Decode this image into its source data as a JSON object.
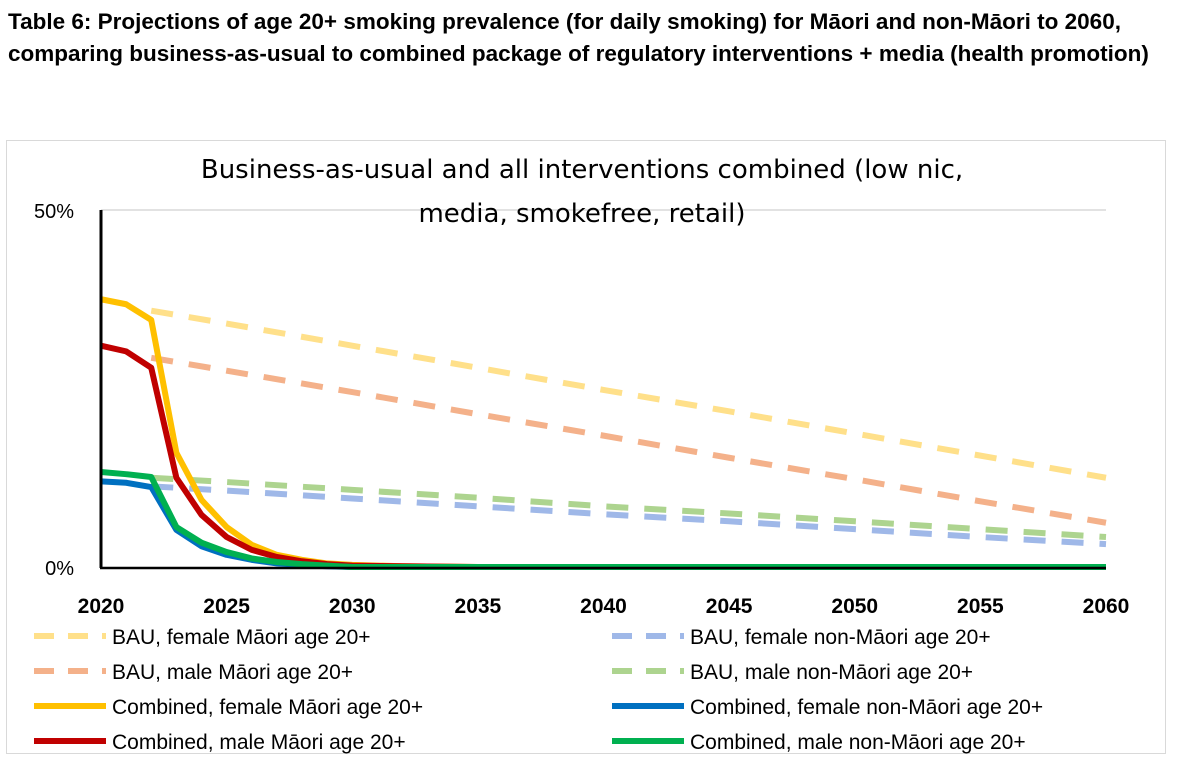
{
  "heading": "Table 6: Projections of age 20+ smoking prevalence (for daily smoking) for Māori and non-Māori to 2060, comparing business-as-usual to combined package of regulatory interventions + media (health promotion)",
  "chart_data": {
    "type": "line",
    "title_line1": "Business-as-usual and all interventions combined (low nic,",
    "title_line2": "media, smokefree, retail)",
    "xlabel": "",
    "ylabel": "",
    "xlim": [
      2020,
      2060
    ],
    "ylim": [
      0,
      50
    ],
    "yticks": [
      "0%",
      "50%"
    ],
    "xticks": [
      "2020",
      "2025",
      "2030",
      "2035",
      "2040",
      "2045",
      "2050",
      "2055",
      "2060"
    ],
    "grid": "top gridline only",
    "legend_position": "bottom",
    "series": [
      {
        "name": "BAU, female Māori   age 20+",
        "color": "#ffe08a",
        "dash": true,
        "x": [
          2022,
          2025,
          2030,
          2035,
          2040,
          2045,
          2050,
          2055,
          2060
        ],
        "y": [
          35.9,
          34.1,
          31,
          27.9,
          24.8,
          21.8,
          18.7,
          15.6,
          12.5
        ]
      },
      {
        "name": "BAU, female non-Māori   age 20+",
        "color": "#9fb8e8",
        "dash": true,
        "x": [
          2022,
          2025,
          2030,
          2035,
          2040,
          2045,
          2050,
          2055,
          2060
        ],
        "y": [
          11.3,
          10.7,
          9.6,
          8.5,
          7.4,
          6.4,
          5.3,
          4.2,
          3.2
        ]
      },
      {
        "name": "BAU, male Māori   age 20+",
        "color": "#f4b18a",
        "dash": true,
        "x": [
          2022,
          2025,
          2030,
          2035,
          2040,
          2045,
          2050,
          2055,
          2060
        ],
        "y": [
          29.3,
          27.5,
          24.5,
          21.4,
          18.4,
          15.3,
          12.3,
          9.2,
          6.2
        ]
      },
      {
        "name": "BAU, male non-Māori   age 20+",
        "color": "#add48f",
        "dash": true,
        "x": [
          2022,
          2025,
          2030,
          2035,
          2040,
          2045,
          2050,
          2055,
          2060
        ],
        "y": [
          12.5,
          11.9,
          10.8,
          9.7,
          8.5,
          7.5,
          6.4,
          5.3,
          4.2
        ]
      },
      {
        "name": "Combined, female Māori   age 20+",
        "color": "#ffc000",
        "dash": false,
        "x": [
          2020,
          2021,
          2022,
          2023,
          2024,
          2025,
          2026,
          2027,
          2028,
          2029,
          2030,
          2032,
          2035,
          2060
        ],
        "y": [
          37.5,
          36.8,
          34.6,
          16,
          9.4,
          5.6,
          3.1,
          1.7,
          1,
          0.5,
          0.3,
          0.1,
          0,
          0
        ]
      },
      {
        "name": "Combined, female non-Māori   age 20+",
        "color": "#0070c0",
        "dash": false,
        "x": [
          2020,
          2021,
          2022,
          2023,
          2024,
          2025,
          2026,
          2027,
          2028,
          2029,
          2030,
          2060
        ],
        "y": [
          12,
          11.8,
          11.2,
          5.2,
          2.9,
          1.7,
          1,
          0.5,
          0.3,
          0.1,
          0,
          0
        ]
      },
      {
        "name": "Combined, male Māori   age 20+",
        "color": "#c00000",
        "dash": false,
        "x": [
          2020,
          2021,
          2022,
          2023,
          2024,
          2025,
          2026,
          2027,
          2028,
          2029,
          2030,
          2032,
          2035,
          2060
        ],
        "y": [
          31,
          30.2,
          27.9,
          12.5,
          7.3,
          4.2,
          2.4,
          1.4,
          0.8,
          0.4,
          0.2,
          0.1,
          0,
          0
        ]
      },
      {
        "name": "Combined, male non-Māori   age 20+",
        "color": "#00b050",
        "dash": false,
        "x": [
          2020,
          2021,
          2022,
          2023,
          2024,
          2025,
          2026,
          2027,
          2028,
          2029,
          2030,
          2060
        ],
        "y": [
          13.3,
          13,
          12.6,
          5.6,
          3.4,
          2.1,
          1.2,
          0.7,
          0.4,
          0.2,
          0,
          0
        ]
      }
    ]
  }
}
